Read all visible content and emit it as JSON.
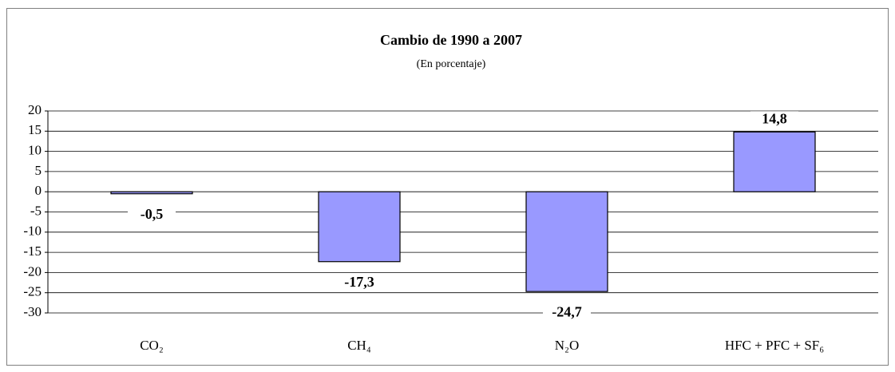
{
  "chart_data": {
    "type": "bar",
    "title": "Cambio de 1990 a 2007",
    "subtitle": "(En porcentaje)",
    "categories": [
      "CO₂",
      "CH₄",
      "N₂O",
      "HFC + PFC + SF₆"
    ],
    "values": [
      -0.5,
      -17.3,
      -24.7,
      14.8
    ],
    "value_labels": [
      "-0,5",
      "-17,3",
      "-24,7",
      "14,8"
    ],
    "color": "#9999ff",
    "ylim": [
      -30,
      20
    ],
    "yticks": [
      -30,
      -25,
      -20,
      -15,
      -10,
      -5,
      0,
      5,
      10,
      15,
      20
    ],
    "grid": true
  }
}
